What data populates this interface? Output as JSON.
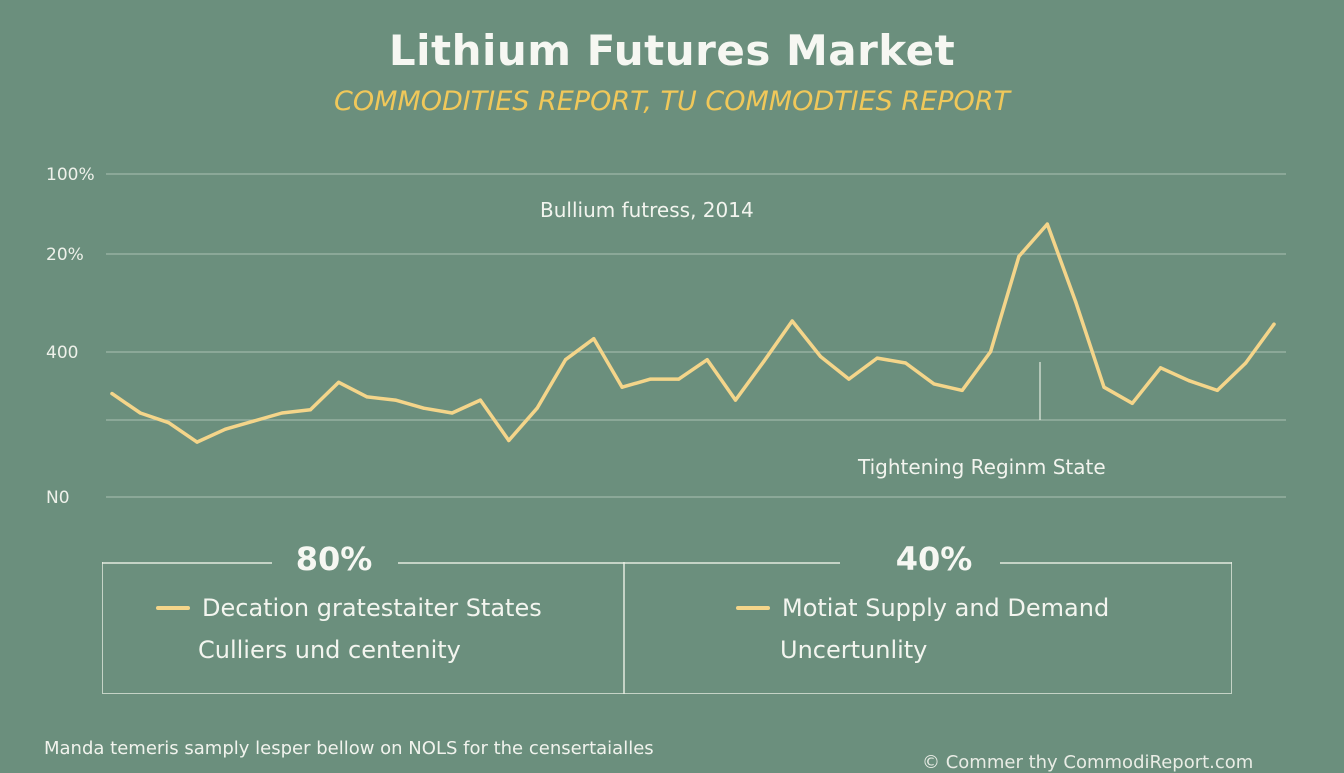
{
  "header": {
    "title": "Lithium Futures Market",
    "subtitle": "COMMODITIES REPORT, TU COMMODTIES REPORT"
  },
  "chart_data": {
    "type": "line",
    "title": "Lithium Futures Market",
    "subtitle": "COMMODITIES REPORT, TU COMMODTIES REPORT",
    "y_tick_labels": [
      "100%",
      "20%",
      "400",
      "N0"
    ],
    "grid": true,
    "annotations": {
      "inner_label": "Bullium futress, 2014",
      "regime_label": "Tightening Reginm State"
    },
    "series": [
      {
        "color": "#f4d58a",
        "values": [
          64,
          52,
          46,
          34,
          42,
          47,
          52,
          54,
          71,
          62,
          60,
          55,
          52,
          60,
          35,
          55,
          85,
          98,
          68,
          73,
          73,
          85,
          60,
          84,
          109,
          87,
          73,
          86,
          83,
          70,
          66,
          90,
          149,
          169,
          121,
          68,
          58,
          80,
          72,
          66,
          83,
          107
        ]
      }
    ]
  },
  "stats": [
    {
      "value": "80%",
      "legend": "Decation gratestaiter States",
      "sublabel": "Culliers und centenity",
      "color": "#f4d58a"
    },
    {
      "value": "40%",
      "legend": "Motiat Supply and Demand",
      "sublabel": "Uncertunlity",
      "color": "#f4d58a"
    }
  ],
  "footer": {
    "note": "Manda temeris samply lesper bellow on NOLS for the censertaialles",
    "copyright": "© Commer thy CommodiReport.com"
  }
}
